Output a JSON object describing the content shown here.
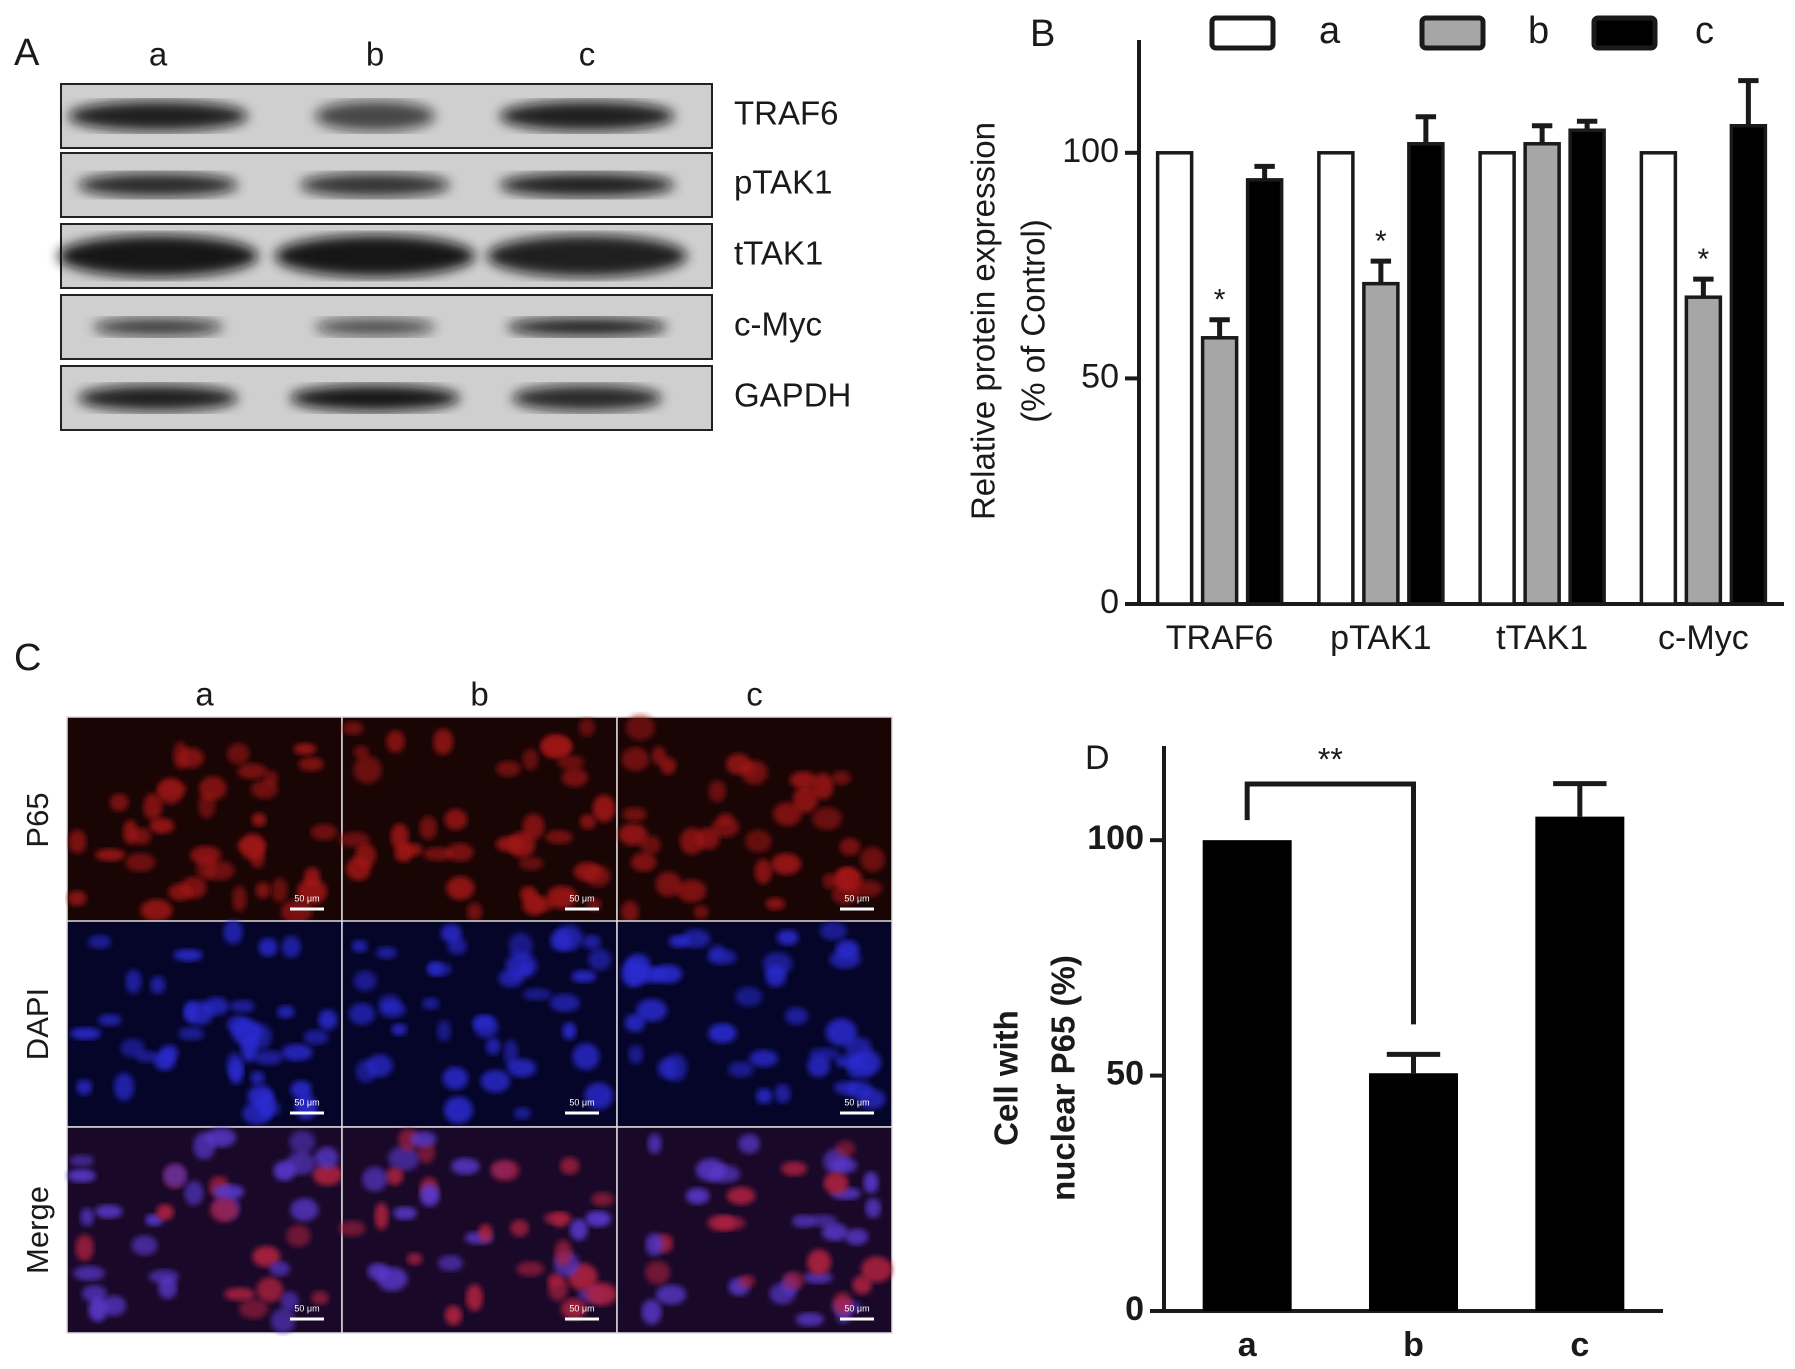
{
  "blot": {
    "panel": "A",
    "lanes": [
      "a",
      "b",
      "c"
    ],
    "rows": [
      "TRAF6",
      "pTAK1",
      "tTAK1",
      "c-Myc",
      "GAPDH"
    ]
  },
  "microscopy": {
    "panel": "C",
    "columns": [
      "a",
      "b",
      "c"
    ],
    "rows": [
      "P65",
      "DAPI",
      "Merge"
    ],
    "scale_bar": "50 μm"
  },
  "chart_data": [
    {
      "type": "bar",
      "panel": "B",
      "y_label": [
        "Relative protein expression",
        "(% of Control)"
      ],
      "categories": [
        "TRAF6",
        "pTAK1",
        "tTAK1",
        "c-Myc"
      ],
      "series": [
        {
          "name": "a",
          "color": "#ffffff",
          "values": [
            100,
            100,
            100,
            100
          ]
        },
        {
          "name": "b",
          "color": "#a6a6a6",
          "values": [
            59,
            71,
            102,
            68
          ],
          "errors": [
            4,
            5,
            4,
            4
          ],
          "annotations": [
            "*",
            "*",
            null,
            "*"
          ]
        },
        {
          "name": "c",
          "color": "#000000",
          "values": [
            94,
            102,
            105,
            106
          ],
          "errors": [
            3,
            6,
            2,
            10
          ]
        }
      ],
      "ylim": [
        0,
        125
      ],
      "yticks": [
        0,
        50,
        100
      ],
      "grid": false
    },
    {
      "type": "bar",
      "panel": "D",
      "y_label": [
        "Cell with",
        "nuclear P65 (%)"
      ],
      "categories": [
        "a",
        "b",
        "c"
      ],
      "values": [
        100,
        50.5,
        105
      ],
      "errors": [
        null,
        4,
        7
      ],
      "color": "#000000",
      "annotation": {
        "text": "**",
        "from": "a",
        "to": "b"
      },
      "ylim": [
        0,
        120
      ],
      "yticks": [
        0,
        50,
        100
      ],
      "grid": false
    }
  ]
}
